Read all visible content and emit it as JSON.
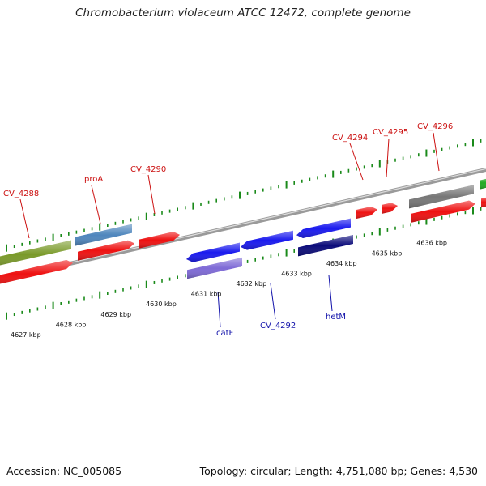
{
  "title": "Chromobacterium violaceum ATCC 12472, complete genome",
  "accession": "Accession: NC_005085",
  "summary": "Topology: circular; Length: 4,751,080 bp; Genes: 4,530",
  "colors": {
    "red": "#ee1111",
    "olive": "#7a9a2a",
    "steel": "#4f86bd",
    "blue": "#1a1aee",
    "navy": "#0b0b7a",
    "lavender": "#7e6ad6",
    "gray": "#777777",
    "green": "#22aa22",
    "tick": "#1a8a1a",
    "label_top": "#cc1111",
    "label_bottom": "#1111aa"
  },
  "top_labels": [
    "CV_4288",
    "proA",
    "CV_4290",
    "CV_4294",
    "CV_4295",
    "CV_4296"
  ],
  "bottom_labels": [
    "catF",
    "CV_4292",
    "hetM"
  ],
  "kbp_labels": [
    "4627 kbp",
    "4628 kbp",
    "4629 kbp",
    "4630 kbp",
    "4631 kbp",
    "4632 kbp",
    "4633 kbp",
    "4634 kbp",
    "4635 kbp",
    "4636 kbp"
  ]
}
